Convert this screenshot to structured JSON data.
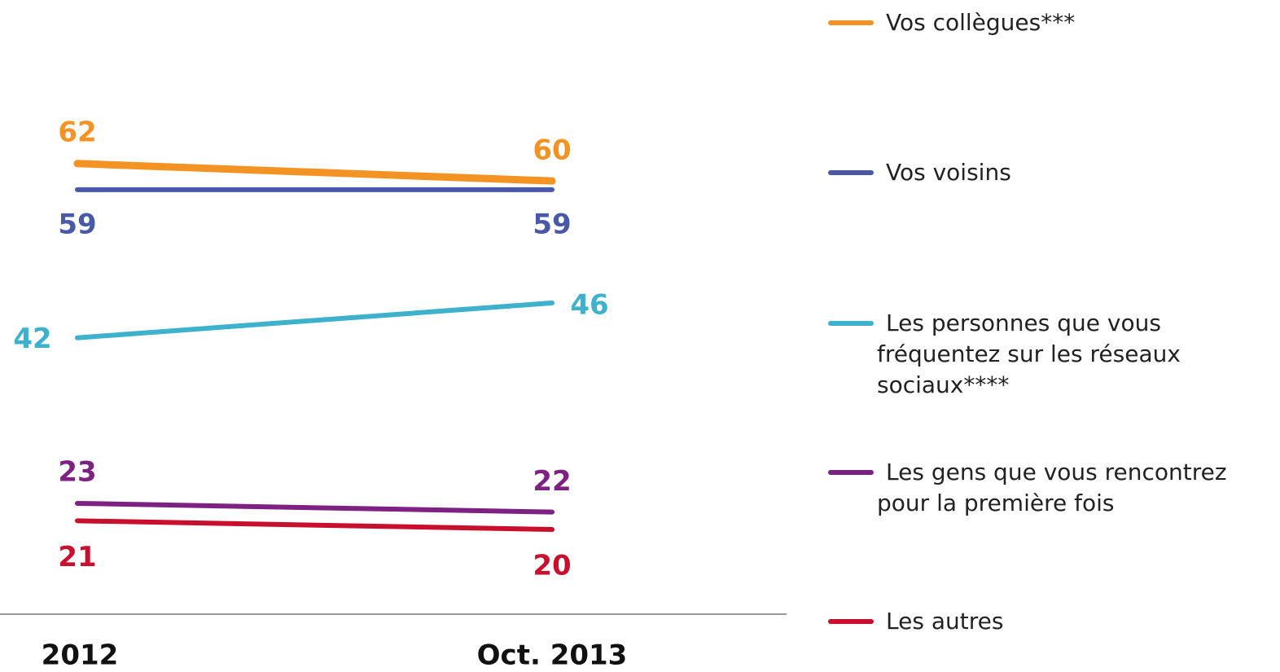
{
  "chart_data": {
    "type": "line",
    "categories": [
      "2012",
      "Oct. 2013"
    ],
    "series": [
      {
        "name": "Vos collègues***",
        "color": "#f39324",
        "values": [
          62,
          60
        ]
      },
      {
        "name": "Vos voisins",
        "color": "#4a58a8",
        "values": [
          59,
          59
        ]
      },
      {
        "name": "Les personnes que vous fréquentez sur les réseaux sociaux****",
        "color": "#3eb1cc",
        "values": [
          42,
          46
        ]
      },
      {
        "name": "Les gens que vous rencontrez pour la première fois",
        "color": "#7d2182",
        "values": [
          23,
          22
        ]
      },
      {
        "name": "Les autres",
        "color": "#c8102e",
        "values": [
          21,
          20
        ]
      }
    ],
    "ylim": [
      10,
      66
    ]
  }
}
